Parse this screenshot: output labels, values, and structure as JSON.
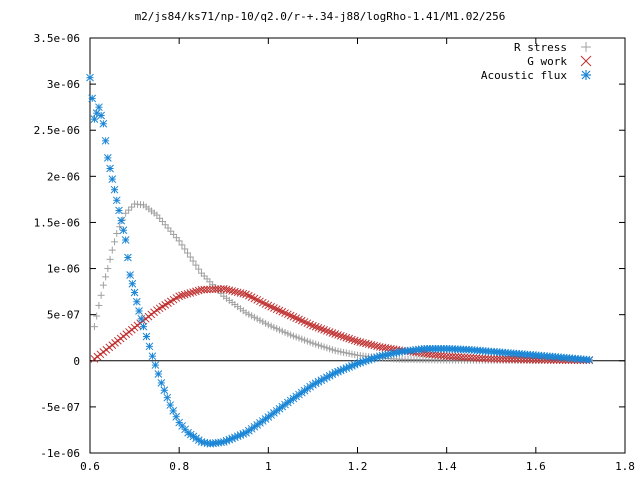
{
  "chart_data": {
    "type": "scatter",
    "title": "m2/js84/ks71/np-10/q2.0/r-+.34-j88/logRho-1.41/M1.02/256",
    "xlabel": "",
    "ylabel": "",
    "xlim": [
      0.6,
      1.8
    ],
    "ylim": [
      -1e-06,
      3.5e-06
    ],
    "x_ticks": [
      "0.6",
      "0.8",
      "1",
      "1.2",
      "1.4",
      "1.6",
      "1.8"
    ],
    "y_ticks": [
      "-1e-06",
      "-5e-07",
      "0",
      "5e-07",
      "1e-06",
      "1.5e-06",
      "2e-06",
      "2.5e-06",
      "3e-06",
      "3.5e-06"
    ],
    "legend_position": "top-right",
    "series": [
      {
        "name": "R stress",
        "marker": "plus",
        "color": "#a0a0a0",
        "x": [
          0.61,
          0.62,
          0.63,
          0.64,
          0.65,
          0.66,
          0.68,
          0.7,
          0.72,
          0.75,
          0.8,
          0.85,
          0.9,
          0.95,
          1.0,
          1.05,
          1.1,
          1.15,
          1.2,
          1.25,
          1.3,
          1.4,
          1.5,
          1.6,
          1.72
        ],
        "y": [
          3.7e-07,
          6e-07,
          8.2e-07,
          1e-06,
          1.2e-06,
          1.38e-06,
          1.6e-06,
          1.7e-06,
          1.69e-06,
          1.58e-06,
          1.3e-06,
          9.5e-07,
          7e-07,
          5.2e-07,
          3.9e-07,
          2.8e-07,
          1.9e-07,
          1.1e-07,
          6e-08,
          3e-08,
          1.5e-08,
          8e-09,
          5e-09,
          4e-09,
          3e-09
        ]
      },
      {
        "name": "G work",
        "marker": "x",
        "color": "#c03030",
        "x": [
          0.61,
          0.65,
          0.7,
          0.75,
          0.8,
          0.85,
          0.9,
          0.95,
          1.0,
          1.05,
          1.1,
          1.15,
          1.2,
          1.25,
          1.3,
          1.35,
          1.4,
          1.5,
          1.6,
          1.72
        ],
        "y": [
          2e-08,
          1.7e-07,
          3.6e-07,
          5.5e-07,
          7e-07,
          7.7e-07,
          7.8e-07,
          7.2e-07,
          6e-07,
          4.9e-07,
          3.8e-07,
          2.9e-07,
          2.1e-07,
          1.5e-07,
          1.1e-07,
          8e-08,
          5e-08,
          2e-08,
          1e-08,
          5e-09
        ]
      },
      {
        "name": "Acoustic flux",
        "marker": "star",
        "color": "#1b86d6",
        "x": [
          0.6,
          0.61,
          0.62,
          0.63,
          0.64,
          0.65,
          0.66,
          0.67,
          0.68,
          0.69,
          0.7,
          0.71,
          0.72,
          0.74,
          0.76,
          0.78,
          0.8,
          0.82,
          0.85,
          0.87,
          0.9,
          0.95,
          1.0,
          1.05,
          1.1,
          1.15,
          1.2,
          1.25,
          1.3,
          1.35,
          1.4,
          1.45,
          1.5,
          1.55,
          1.6,
          1.65,
          1.72
        ],
        "y": [
          3.07e-06,
          2.62e-06,
          2.75e-06,
          2.57e-06,
          2.2e-06,
          1.97e-06,
          1.74e-06,
          1.52e-06,
          1.31e-06,
          9.3e-07,
          7.4e-07,
          5.4e-07,
          3.7e-07,
          5e-08,
          -2.4e-07,
          -4.8e-07,
          -6.7e-07,
          -7.8e-07,
          -8.8e-07,
          -9e-07,
          -8.8e-07,
          -7.8e-07,
          -6.1e-07,
          -4.3e-07,
          -2.6e-07,
          -1.3e-07,
          -3e-08,
          5e-08,
          1e-07,
          1.3e-07,
          1.3e-07,
          1.2e-07,
          1e-07,
          8e-08,
          6e-08,
          4e-08,
          1e-08
        ]
      }
    ]
  }
}
